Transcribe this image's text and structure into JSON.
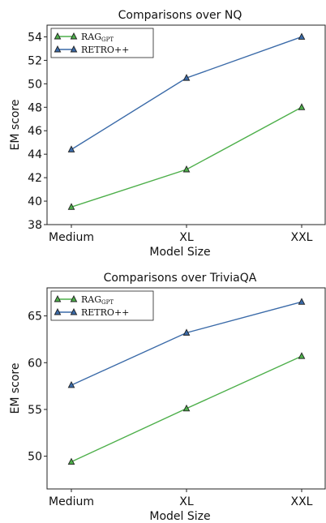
{
  "chart_data": [
    {
      "type": "line",
      "title": "Comparisons over NQ",
      "xlabel": "Model Size",
      "ylabel": "EM score",
      "categories": [
        "Medium",
        "XL",
        "XXL"
      ],
      "ylim": [
        38,
        55
      ],
      "yticks": [
        38,
        40,
        42,
        44,
        46,
        48,
        50,
        52,
        54
      ],
      "grid": false,
      "legend_position": "top-left",
      "series": [
        {
          "name": "RAG",
          "name_subscript": "GPT",
          "color": "#4daf4a",
          "marker": "triangle",
          "values": [
            39.5,
            42.7,
            48.0
          ]
        },
        {
          "name": "RETRO++",
          "color": "#3a6aa8",
          "marker": "triangle",
          "values": [
            44.4,
            50.5,
            54.0
          ]
        }
      ]
    },
    {
      "type": "line",
      "title": "Comparisons over TriviaQA",
      "xlabel": "Model Size",
      "ylabel": "EM score",
      "categories": [
        "Medium",
        "XL",
        "XXL"
      ],
      "ylim": [
        46.5,
        68
      ],
      "yticks": [
        50,
        55,
        60,
        65
      ],
      "grid": false,
      "legend_position": "top-left",
      "series": [
        {
          "name": "RAG",
          "name_subscript": "GPT",
          "color": "#4daf4a",
          "marker": "triangle",
          "values": [
            49.4,
            55.1,
            60.7
          ]
        },
        {
          "name": "RETRO++",
          "color": "#3a6aa8",
          "marker": "triangle",
          "values": [
            57.6,
            63.2,
            66.5
          ]
        }
      ]
    }
  ]
}
